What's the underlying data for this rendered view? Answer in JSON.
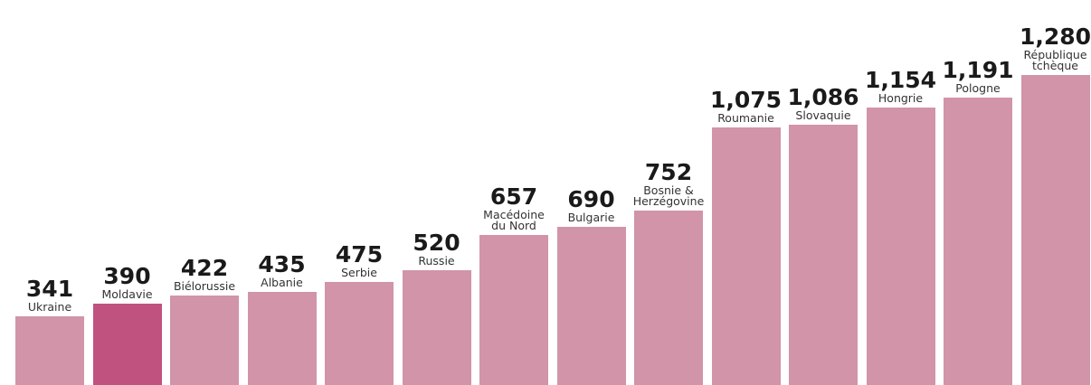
{
  "chart_data": {
    "type": "bar",
    "categories": [
      "Ukraine",
      "Moldavie",
      "Biélorussie",
      "Albanie",
      "Serbie",
      "Russie",
      "Macédoine du Nord",
      "Bulgarie",
      "Bosnie & Herzégovine",
      "Roumanie",
      "Slovaquie",
      "Hongrie",
      "Pologne",
      "République tchèque"
    ],
    "values": [
      341,
      390,
      422,
      435,
      475,
      520,
      657,
      690,
      752,
      1075,
      1086,
      1154,
      1191,
      1280
    ],
    "value_labels": [
      "341",
      "390",
      "422",
      "435",
      "475",
      "520",
      "657",
      "690",
      "752",
      "1,075",
      "1,086",
      "1,154",
      "1,191",
      "1,280"
    ],
    "colors": [
      "#d194a9",
      "#c0527f",
      "#d194a9",
      "#d194a9",
      "#d194a9",
      "#d194a9",
      "#d194a9",
      "#d194a9",
      "#d194a9",
      "#d194a9",
      "#d194a9",
      "#d194a9",
      "#d194a9",
      "#d194a9"
    ],
    "ylim": [
      74,
      1280
    ]
  }
}
